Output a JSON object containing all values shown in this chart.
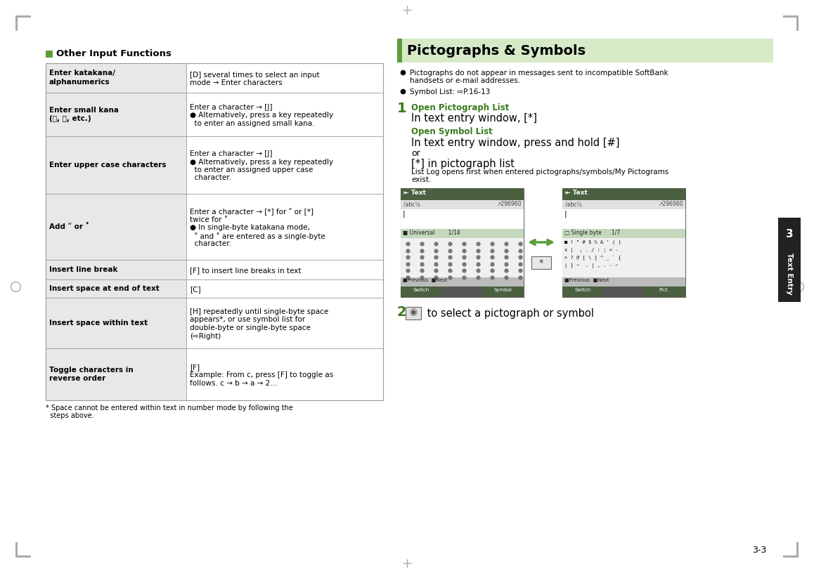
{
  "page_bg": "#ffffff",
  "margin_color": "#aaaaaa",
  "green_header_bg": "#5a9e3a",
  "light_green_bg": "#d6eac8",
  "dark_green_text": "#3a7a1a",
  "table_left_bg": "#e8e8e8",
  "table_border": "#999999",
  "black": "#000000",
  "white": "#ffffff",
  "gray_tab": "#222222",
  "section_title": "Other Input Functions",
  "right_title": "Pictographs & Symbols",
  "page_number": "3-3",
  "tab_number": "3",
  "tab_label": "Text Entry",
  "table_rows": [
    {
      "left": "Enter katakana/\nalphanumerics",
      "right_lines": [
        "[D] several times to select an input",
        "mode → Enter characters"
      ],
      "left_bold": true
    },
    {
      "left": "Enter small kana\n(つ, ツ, etc.)",
      "right_lines": [
        "Enter a character → [J]",
        "● Alternatively, press a key repeatedly",
        "  to enter an assigned small kana."
      ],
      "left_bold": true
    },
    {
      "left": "Enter upper case characters",
      "right_lines": [
        "Enter a character → [J]",
        "● Alternatively, press a key repeatedly",
        "  to enter an assigned upper case",
        "  character."
      ],
      "left_bold": true
    },
    {
      "left": "Add ʺ or ˚",
      "right_lines": [
        "Enter a character → [*] for ʺ or [*]",
        "twice for ˚",
        "● In single-byte katakana mode,",
        "  ʺ and ˚ are entered as a single-byte",
        "  character."
      ],
      "left_bold": true
    },
    {
      "left": "Insert line break",
      "right_lines": [
        "[F] to insert line breaks in text"
      ],
      "left_bold": true
    },
    {
      "left": "Insert space at end of text",
      "right_lines": [
        "[C]"
      ],
      "left_bold": true
    },
    {
      "left": "Insert space within text",
      "right_lines": [
        "[H] repeatedly until single-byte space",
        "appears*, or use symbol list for",
        "double-byte or single-byte space",
        "(⇨Right)"
      ],
      "left_bold": true
    },
    {
      "left": "Toggle characters in\nreverse order",
      "right_lines": [
        "[F]",
        "Example: From c, press [F] to toggle as",
        "follows. c → b → a → 2..."
      ],
      "left_bold": true
    }
  ],
  "footnote_lines": [
    "* Space cannot be entered within text in number mode by following the",
    "  steps above."
  ],
  "bullet1_lines": [
    "Pictographs do not appear in messages sent to incompatible SoftBank",
    "handsets or e-mail addresses."
  ],
  "bullet2_lines": [
    "Symbol List: ⇨P.16-13"
  ],
  "step1_label": "1",
  "step1_green1": "Open Pictograph List",
  "step1_body1": "In text entry window, [*]",
  "step1_green2": "Open Symbol List",
  "step1_body2a": "In text entry window, press and hold [#]",
  "step1_body2b": "or",
  "step1_body2c": "[*] in pictograph list",
  "step1_body2d_lines": [
    "List Log opens first when entered pictographs/symbols/My Pictograms",
    "exist."
  ],
  "step2_label": "2",
  "step2_body": " to select a pictograph or symbol"
}
